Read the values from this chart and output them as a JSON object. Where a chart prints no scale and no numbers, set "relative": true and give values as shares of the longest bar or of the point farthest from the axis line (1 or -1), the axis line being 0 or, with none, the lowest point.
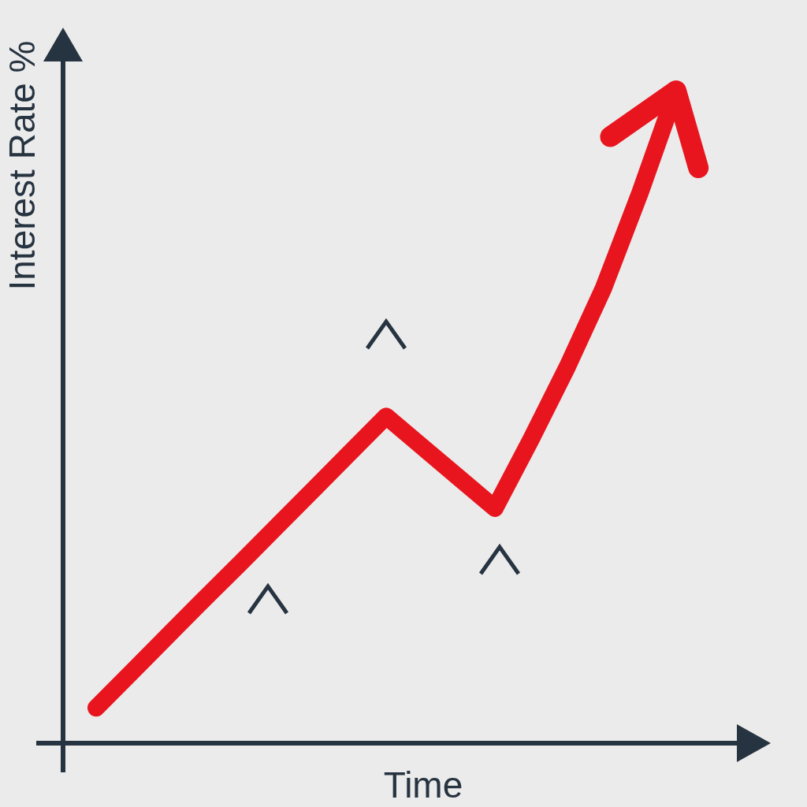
{
  "chart_data": {
    "type": "line",
    "relative": true,
    "xlabel": "Time",
    "ylabel": "Interest Rate %",
    "categories": [
      null,
      null,
      null,
      null,
      null,
      null,
      null,
      null,
      null,
      null,
      null,
      null,
      null,
      null,
      null,
      null,
      null
    ],
    "grid": false,
    "legend": false,
    "line_style": "solid",
    "series": [
      {
        "color": "#e8151e",
        "values": [
          0.054,
          0.11,
          0.166,
          0.222,
          0.277,
          0.333,
          0.389,
          0.445,
          0.501,
          0.454,
          0.407,
          0.36,
          0.466,
          0.577,
          0.698,
          0.843,
          1
        ]
      }
    ]
  }
}
